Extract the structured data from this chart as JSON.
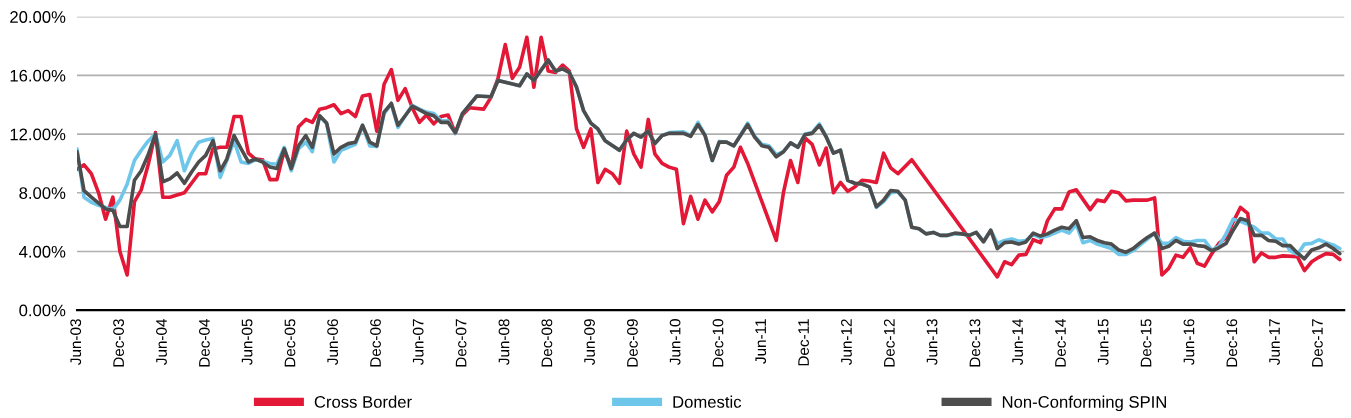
{
  "chart_data": {
    "type": "line",
    "series": [
      {
        "name": "Cross Border",
        "color": "#e31837",
        "x": [
          "2003-06",
          "2003-07",
          "2003-08",
          "2003-09",
          "2003-10",
          "2003-11",
          "2003-12",
          "2004-01",
          "2004-02",
          "2004-03",
          "2004-04",
          "2004-05",
          "2004-06",
          "2004-07",
          "2004-09",
          "2004-11",
          "2004-12",
          "2005-01",
          "2005-02",
          "2005-03",
          "2005-04",
          "2005-05",
          "2005-06",
          "2005-07",
          "2005-08",
          "2005-09",
          "2005-10",
          "2005-11",
          "2005-12",
          "2006-01",
          "2006-02",
          "2006-03",
          "2006-04",
          "2006-05",
          "2006-06",
          "2006-07",
          "2006-08",
          "2006-09",
          "2006-10",
          "2006-11",
          "2006-12",
          "2007-01",
          "2007-02",
          "2007-03",
          "2007-04",
          "2007-05",
          "2007-06",
          "2007-07",
          "2007-08",
          "2007-09",
          "2007-10",
          "2007-11",
          "2007-12",
          "2008-01",
          "2008-03",
          "2008-04",
          "2008-05",
          "2008-06",
          "2008-07",
          "2008-08",
          "2008-09",
          "2008-10",
          "2008-11",
          "2008-12",
          "2009-01",
          "2009-02",
          "2009-03",
          "2009-04",
          "2009-05",
          "2009-06",
          "2009-07",
          "2009-08",
          "2009-09",
          "2009-10",
          "2009-11",
          "2009-12",
          "2010-01",
          "2010-02",
          "2010-03",
          "2010-04",
          "2010-05",
          "2010-06",
          "2010-07",
          "2010-08",
          "2010-09",
          "2010-10",
          "2010-11",
          "2010-12",
          "2011-01",
          "2011-02",
          "2011-03",
          "2011-04",
          "2011-08",
          "2011-09",
          "2011-10",
          "2011-11",
          "2011-12",
          "2012-01",
          "2012-02",
          "2012-03",
          "2012-04",
          "2012-05",
          "2012-06",
          "2012-07",
          "2012-08",
          "2012-09",
          "2012-10",
          "2012-11",
          "2012-12",
          "2013-01",
          "2013-03",
          "2014-03",
          "2014-04",
          "2014-05",
          "2014-06",
          "2014-07",
          "2014-08",
          "2014-09",
          "2014-10",
          "2014-11",
          "2014-12",
          "2015-01",
          "2015-02",
          "2015-04",
          "2015-05",
          "2015-06",
          "2015-07",
          "2015-08",
          "2015-09",
          "2015-10",
          "2015-11",
          "2015-12",
          "2016-01",
          "2016-02",
          "2016-03",
          "2016-04",
          "2016-05",
          "2016-06",
          "2016-07",
          "2016-08",
          "2016-09",
          "2016-10",
          "2016-11",
          "2016-12",
          "2017-01",
          "2017-02",
          "2017-03",
          "2017-04",
          "2017-05",
          "2017-06",
          "2017-07",
          "2017-09",
          "2017-10",
          "2017-11",
          "2017-12",
          "2018-01",
          "2018-02",
          "2018-03"
        ],
        "values": [
          9.6,
          9.9,
          9.3,
          8.0,
          6.2,
          7.7,
          4.0,
          2.4,
          7.4,
          8.2,
          10.0,
          12.1,
          7.7,
          7.7,
          8.0,
          9.3,
          9.3,
          11.0,
          11.1,
          11.1,
          13.2,
          13.2,
          10.7,
          10.3,
          10.25,
          8.9,
          8.9,
          10.9,
          9.75,
          12.5,
          13.0,
          12.8,
          13.7,
          13.8,
          14.0,
          13.4,
          13.6,
          13.2,
          14.6,
          14.7,
          12.2,
          15.4,
          16.4,
          14.3,
          15.1,
          13.8,
          12.8,
          13.3,
          12.7,
          13.2,
          13.3,
          12.05,
          13.3,
          13.8,
          13.7,
          14.5,
          15.8,
          18.1,
          15.8,
          16.55,
          18.6,
          15.2,
          18.6,
          16.3,
          16.2,
          16.7,
          16.3,
          12.35,
          11.1,
          12.35,
          8.7,
          9.6,
          9.3,
          8.65,
          12.2,
          10.65,
          9.75,
          13.0,
          10.65,
          10.0,
          9.75,
          9.6,
          5.9,
          7.75,
          6.2,
          7.5,
          6.7,
          7.4,
          9.2,
          9.75,
          11.1,
          10.0,
          4.76,
          8.05,
          10.2,
          8.7,
          11.75,
          11.3,
          9.9,
          11.05,
          8.0,
          8.7,
          8.1,
          8.4,
          8.85,
          8.8,
          8.7,
          10.7,
          9.7,
          9.3,
          10.25,
          2.27,
          3.3,
          3.1,
          3.75,
          3.8,
          4.8,
          4.6,
          6.1,
          6.9,
          6.9,
          8.05,
          8.2,
          6.85,
          7.5,
          7.4,
          8.1,
          8.0,
          7.45,
          7.5,
          7.5,
          7.5,
          7.65,
          2.4,
          2.85,
          3.75,
          3.6,
          4.25,
          3.2,
          3.0,
          3.85,
          4.55,
          4.95,
          6.0,
          7.0,
          6.6,
          3.3,
          3.9,
          3.6,
          3.6,
          3.7,
          3.65,
          2.7,
          3.3,
          3.6,
          3.85,
          3.8,
          3.45
        ]
      },
      {
        "name": "Domestic",
        "color": "#6ec6ea",
        "x": [
          "2003-06",
          "2003-07",
          "2003-08",
          "2003-09",
          "2003-10",
          "2003-11",
          "2003-12",
          "2004-01",
          "2004-02",
          "2004-03",
          "2004-04",
          "2004-05",
          "2004-06",
          "2004-07",
          "2004-08",
          "2004-09",
          "2004-10",
          "2004-11",
          "2004-12",
          "2005-01",
          "2005-02",
          "2005-03",
          "2005-04",
          "2005-05",
          "2005-06",
          "2005-07",
          "2005-08",
          "2005-09",
          "2005-10",
          "2005-11",
          "2005-12",
          "2006-01",
          "2006-02",
          "2006-03",
          "2006-04",
          "2006-05",
          "2006-06",
          "2006-07",
          "2006-08",
          "2006-09",
          "2006-10",
          "2006-11",
          "2006-12",
          "2007-01",
          "2007-02",
          "2007-03",
          "2007-04",
          "2007-05",
          "2007-06",
          "2007-07",
          "2007-08",
          "2007-09",
          "2007-10",
          "2007-11",
          "2007-12",
          "2008-02",
          "2008-04",
          "2008-05",
          "2008-08",
          "2008-09",
          "2008-10",
          "2008-12",
          "2009-01",
          "2009-02",
          "2009-03",
          "2009-04",
          "2009-05",
          "2009-06",
          "2009-07",
          "2009-08",
          "2009-10",
          "2009-11",
          "2009-12",
          "2010-01",
          "2010-02",
          "2010-03",
          "2010-04",
          "2010-05",
          "2010-07",
          "2010-08",
          "2010-09",
          "2010-10",
          "2010-11",
          "2010-12",
          "2011-01",
          "2011-02",
          "2011-04",
          "2011-05",
          "2011-06",
          "2011-07",
          "2011-08",
          "2011-09",
          "2011-10",
          "2011-11",
          "2011-12",
          "2012-01",
          "2012-02",
          "2012-03",
          "2012-04",
          "2012-05",
          "2012-06",
          "2012-07",
          "2012-08",
          "2012-09",
          "2012-10",
          "2012-11",
          "2012-12",
          "2013-01",
          "2013-02",
          "2013-03",
          "2013-04",
          "2013-05",
          "2013-06",
          "2013-07",
          "2013-08",
          "2013-09",
          "2013-10",
          "2013-11",
          "2013-12",
          "2014-01",
          "2014-02",
          "2014-03",
          "2014-04",
          "2014-05",
          "2014-06",
          "2014-07",
          "2014-08",
          "2014-09",
          "2014-10",
          "2014-11",
          "2014-12",
          "2015-01",
          "2015-02",
          "2015-03",
          "2015-04",
          "2015-05",
          "2015-06",
          "2015-07",
          "2015-08",
          "2015-09",
          "2015-10",
          "2015-11",
          "2015-12",
          "2016-01",
          "2016-02",
          "2016-03",
          "2016-04",
          "2016-05",
          "2016-06",
          "2016-07",
          "2016-08",
          "2016-09",
          "2016-10",
          "2016-11",
          "2016-12",
          "2017-01",
          "2017-02",
          "2017-03",
          "2017-04",
          "2017-05",
          "2017-06",
          "2017-07",
          "2017-08",
          "2017-09",
          "2017-10",
          "2017-11",
          "2017-12",
          "2018-01",
          "2018-02",
          "2018-03"
        ],
        "values": [
          11.0,
          7.7,
          7.35,
          7.15,
          7.0,
          6.85,
          7.5,
          8.6,
          10.2,
          10.9,
          11.55,
          12.0,
          10.1,
          10.55,
          11.55,
          9.5,
          10.65,
          11.45,
          11.6,
          11.7,
          9.05,
          10.2,
          11.55,
          10.1,
          10.0,
          10.25,
          10.15,
          10.0,
          9.95,
          11.1,
          9.5,
          11.0,
          11.45,
          10.8,
          13.25,
          12.7,
          10.1,
          10.9,
          11.1,
          11.3,
          12.6,
          11.2,
          11.15,
          13.4,
          14.05,
          12.45,
          13.25,
          13.95,
          13.7,
          13.5,
          13.4,
          12.9,
          12.9,
          12.05,
          13.4,
          14.6,
          14.55,
          15.65,
          15.3,
          16.1,
          15.65,
          17.05,
          16.3,
          16.45,
          16.2,
          15.2,
          13.6,
          12.75,
          12.35,
          11.55,
          10.9,
          11.6,
          12.05,
          11.8,
          12.2,
          11.35,
          11.9,
          12.1,
          12.15,
          11.9,
          12.8,
          11.95,
          10.2,
          11.5,
          11.45,
          11.2,
          12.75,
          11.85,
          11.3,
          11.2,
          10.6,
          10.8,
          11.4,
          11.1,
          12.0,
          12.1,
          12.7,
          11.85,
          10.7,
          10.9,
          8.85,
          8.65,
          8.6,
          8.4,
          7.0,
          7.4,
          8.0,
          8.05,
          7.5,
          5.65,
          5.55,
          5.2,
          5.3,
          5.1,
          5.1,
          5.2,
          5.2,
          5.1,
          5.3,
          4.7,
          5.45,
          4.55,
          4.75,
          4.85,
          4.7,
          4.75,
          5.15,
          4.95,
          5.05,
          5.25,
          5.45,
          5.25,
          5.85,
          4.6,
          4.75,
          4.5,
          4.35,
          4.2,
          3.8,
          3.8,
          4.05,
          4.45,
          4.85,
          5.25,
          4.55,
          4.55,
          4.95,
          4.7,
          4.65,
          4.75,
          4.75,
          4.1,
          4.35,
          5.2,
          6.2,
          6.05,
          5.85,
          5.65,
          5.25,
          5.25,
          4.85,
          4.85,
          4.05,
          3.8,
          4.5,
          4.55,
          4.8,
          4.6,
          4.45,
          4.2
        ]
      },
      {
        "name": "Non-Conforming SPIN",
        "color": "#4d4d4d",
        "x": [
          "2003-06",
          "2003-07",
          "2003-08",
          "2003-10",
          "2003-11",
          "2003-12",
          "2004-01",
          "2004-02",
          "2004-03",
          "2004-04",
          "2004-05",
          "2004-06",
          "2004-07",
          "2004-08",
          "2004-09",
          "2004-10",
          "2004-11",
          "2004-12",
          "2005-01",
          "2005-02",
          "2005-03",
          "2005-04",
          "2005-05",
          "2005-06",
          "2005-07",
          "2005-08",
          "2005-09",
          "2005-10",
          "2005-11",
          "2005-12",
          "2006-01",
          "2006-02",
          "2006-03",
          "2006-04",
          "2006-05",
          "2006-06",
          "2006-07",
          "2006-08",
          "2006-09",
          "2006-10",
          "2006-11",
          "2006-12",
          "2007-01",
          "2007-02",
          "2007-03",
          "2007-04",
          "2007-05",
          "2007-06",
          "2007-07",
          "2007-08",
          "2007-09",
          "2007-10",
          "2007-11",
          "2007-12",
          "2008-02",
          "2008-04",
          "2008-05",
          "2008-08",
          "2008-09",
          "2008-10",
          "2008-12",
          "2009-01",
          "2009-02",
          "2009-03",
          "2009-04",
          "2009-05",
          "2009-06",
          "2009-07",
          "2009-08",
          "2009-10",
          "2009-11",
          "2009-12",
          "2010-01",
          "2010-02",
          "2010-03",
          "2010-04",
          "2010-05",
          "2010-07",
          "2010-08",
          "2010-09",
          "2010-10",
          "2010-11",
          "2010-12",
          "2011-01",
          "2011-02",
          "2011-04",
          "2011-05",
          "2011-06",
          "2011-07",
          "2011-08",
          "2011-09",
          "2011-10",
          "2011-11",
          "2011-12",
          "2012-01",
          "2012-02",
          "2012-03",
          "2012-04",
          "2012-05",
          "2012-06",
          "2012-07",
          "2012-08",
          "2012-09",
          "2012-10",
          "2012-11",
          "2012-12",
          "2013-01",
          "2013-02",
          "2013-03",
          "2013-04",
          "2013-05",
          "2013-06",
          "2013-07",
          "2013-08",
          "2013-09",
          "2013-10",
          "2013-11",
          "2013-12",
          "2014-01",
          "2014-02",
          "2014-03",
          "2014-04",
          "2014-05",
          "2014-06",
          "2014-07",
          "2014-08",
          "2014-09",
          "2014-10",
          "2014-11",
          "2014-12",
          "2015-01",
          "2015-02",
          "2015-03",
          "2015-04",
          "2015-05",
          "2015-06",
          "2015-07",
          "2015-08",
          "2015-09",
          "2015-10",
          "2015-11",
          "2015-12",
          "2016-01",
          "2016-02",
          "2016-03",
          "2016-04",
          "2016-05",
          "2016-06",
          "2016-07",
          "2016-08",
          "2016-09",
          "2016-10",
          "2016-11",
          "2016-12",
          "2017-01",
          "2017-02",
          "2017-03",
          "2017-04",
          "2017-05",
          "2017-06",
          "2017-07",
          "2017-08",
          "2017-09",
          "2017-10",
          "2017-11",
          "2017-12",
          "2018-01",
          "2018-02",
          "2018-03"
        ],
        "values": [
          10.8,
          8.15,
          7.7,
          6.9,
          6.8,
          5.7,
          5.7,
          8.85,
          9.5,
          10.65,
          12.0,
          8.75,
          8.95,
          9.35,
          8.65,
          9.4,
          10.1,
          10.55,
          11.55,
          9.5,
          10.3,
          11.9,
          11.0,
          10.1,
          10.3,
          10.1,
          9.75,
          9.65,
          11.0,
          9.65,
          11.2,
          11.9,
          11.1,
          13.25,
          12.75,
          10.65,
          11.1,
          11.35,
          11.45,
          12.6,
          11.45,
          11.2,
          13.5,
          14.1,
          12.6,
          13.25,
          13.9,
          13.65,
          13.4,
          13.25,
          12.8,
          12.8,
          12.1,
          13.4,
          14.6,
          14.55,
          15.65,
          15.3,
          16.1,
          15.65,
          17.05,
          16.3,
          16.45,
          16.2,
          15.2,
          13.6,
          12.75,
          12.35,
          11.55,
          10.9,
          11.6,
          12.05,
          11.8,
          12.2,
          11.35,
          11.9,
          12.05,
          12.05,
          11.85,
          12.65,
          11.9,
          10.2,
          11.45,
          11.45,
          11.2,
          12.65,
          11.8,
          11.2,
          11.1,
          10.45,
          10.8,
          11.4,
          11.1,
          11.95,
          12.05,
          12.6,
          11.8,
          10.7,
          10.9,
          8.85,
          8.65,
          8.6,
          8.4,
          7.05,
          7.5,
          8.15,
          8.1,
          7.5,
          5.65,
          5.55,
          5.2,
          5.3,
          5.1,
          5.1,
          5.25,
          5.2,
          5.1,
          5.3,
          4.65,
          5.45,
          4.2,
          4.6,
          4.65,
          4.5,
          4.65,
          5.25,
          5.05,
          5.2,
          5.45,
          5.65,
          5.55,
          6.1,
          4.95,
          5.0,
          4.75,
          4.6,
          4.5,
          4.1,
          3.95,
          4.2,
          4.6,
          4.95,
          5.25,
          4.2,
          4.35,
          4.75,
          4.5,
          4.5,
          4.4,
          4.35,
          4.05,
          4.25,
          4.55,
          5.45,
          6.25,
          6.1,
          5.1,
          5.1,
          4.75,
          4.7,
          4.4,
          4.4,
          3.9,
          3.5,
          4.1,
          4.25,
          4.5,
          4.2,
          3.85
        ]
      }
    ],
    "xlim": [
      "2003-06",
      "2018-03-20"
    ],
    "xticks": [
      {
        "value": "2003-06",
        "label": "Jun-03"
      },
      {
        "value": "2003-12",
        "label": "Dec-03"
      },
      {
        "value": "2004-06",
        "label": "Jun-04"
      },
      {
        "value": "2004-12",
        "label": "Dec-04"
      },
      {
        "value": "2005-06",
        "label": "Jun-05"
      },
      {
        "value": "2005-12",
        "label": "Dec-05"
      },
      {
        "value": "2006-06",
        "label": "Jun-06"
      },
      {
        "value": "2006-12",
        "label": "Dec-06"
      },
      {
        "value": "2007-06",
        "label": "Jun-07"
      },
      {
        "value": "2007-12",
        "label": "Dec-07"
      },
      {
        "value": "2008-06",
        "label": "Jun-08"
      },
      {
        "value": "2008-12",
        "label": "Dec-08"
      },
      {
        "value": "2009-06",
        "label": "Jun-09"
      },
      {
        "value": "2009-12",
        "label": "Dec-09"
      },
      {
        "value": "2010-06",
        "label": "Jun-10"
      },
      {
        "value": "2010-12",
        "label": "Dec-10"
      },
      {
        "value": "2011-06",
        "label": "Jun-11"
      },
      {
        "value": "2011-12",
        "label": "Dec-11"
      },
      {
        "value": "2012-06",
        "label": "Jun-12"
      },
      {
        "value": "2012-12",
        "label": "Dec-12"
      },
      {
        "value": "2013-06",
        "label": "Jun-13"
      },
      {
        "value": "2013-12",
        "label": "Dec-13"
      },
      {
        "value": "2014-06",
        "label": "Jun-14"
      },
      {
        "value": "2014-12",
        "label": "Dec-14"
      },
      {
        "value": "2015-06",
        "label": "Jun-15"
      },
      {
        "value": "2015-12",
        "label": "Dec-15"
      },
      {
        "value": "2016-06",
        "label": "Jun-16"
      },
      {
        "value": "2016-12",
        "label": "Dec-16"
      },
      {
        "value": "2017-06",
        "label": "Jun-17"
      },
      {
        "value": "2017-12",
        "label": "Dec-17"
      }
    ],
    "ylim": [
      0,
      20
    ],
    "yticks": [
      {
        "value": 0,
        "label": "0.00%"
      },
      {
        "value": 4,
        "label": "4.00%"
      },
      {
        "value": 8,
        "label": "8.00%"
      },
      {
        "value": 12,
        "label": "12.00%"
      },
      {
        "value": 16,
        "label": "16.00%"
      },
      {
        "value": 20,
        "label": "20.00%"
      }
    ],
    "grid": "y",
    "legend": "bottom",
    "marker": "none",
    "line_style": "solid"
  }
}
